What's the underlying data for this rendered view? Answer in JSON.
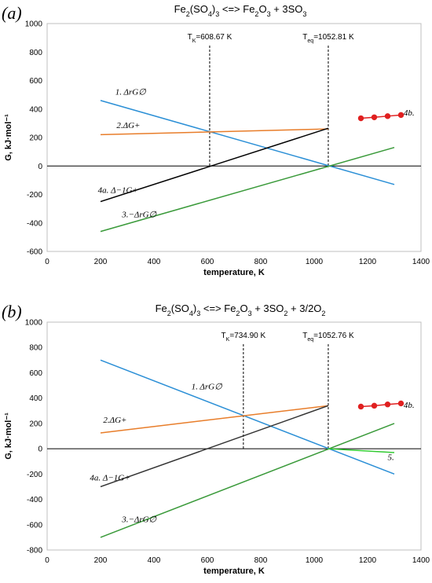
{
  "chart_data": [
    {
      "type": "line",
      "panel_label": "(a)",
      "title": "Fe2(SO4)3 <=> Fe2O3 + 3SO3",
      "title_parts": [
        "Fe",
        "2",
        "(SO",
        "4",
        ")",
        "3",
        " <=> Fe",
        "2",
        "O",
        "3",
        " + 3SO",
        "3"
      ],
      "xlabel": "temperature,  K",
      "ylabel": "G, kJ·mol⁻¹",
      "xlim": [
        0,
        1400
      ],
      "ylim": [
        -600,
        1000
      ],
      "xticks": [
        "0",
        "200",
        "400",
        "600",
        "800",
        "1000",
        "1200",
        "1400"
      ],
      "yticks": [
        "1000",
        "800",
        "600",
        "400",
        "200",
        "0",
        "-200",
        "-400",
        "-600"
      ],
      "vlines": [
        {
          "x": 608.67,
          "label": "T",
          "sub": "K",
          "value": "=608.67 K"
        },
        {
          "x": 1052.81,
          "label": "T",
          "sub": "eq",
          "value": "=1052.81 K"
        }
      ],
      "series": [
        {
          "name": "1. ΔrG∅",
          "color": "#2b8fd6",
          "x": [
            200,
            1300
          ],
          "y": [
            460,
            -130
          ],
          "label_x": 255,
          "label_y": 500
        },
        {
          "name": "2.ΔG+",
          "color": "#e87d2a",
          "x": [
            200,
            1052.81
          ],
          "y": [
            220,
            260
          ],
          "label_x": 260,
          "label_y": 265
        },
        {
          "name": "4a. Δ−1G+",
          "color": "#000000",
          "x": [
            200,
            1052.81
          ],
          "y": [
            -250,
            265
          ],
          "label_x": 190,
          "label_y": -190
        },
        {
          "name": "3.−ΔrG∅",
          "color": "#3a9a3a",
          "x": [
            200,
            1300
          ],
          "y": [
            -460,
            130
          ],
          "label_x": 280,
          "label_y": -360
        },
        {
          "name": "4b.",
          "color": "#e02020",
          "marker": true,
          "x": [
            1175,
            1225,
            1275,
            1325
          ],
          "y": [
            335,
            342,
            350,
            358
          ],
          "label_x": 1335,
          "label_y": 355
        }
      ]
    },
    {
      "type": "line",
      "panel_label": "(b)",
      "title": "Fe2(SO4)3 <=> Fe2O3 + 3SO2 + 3/2O2",
      "title_parts": [
        "Fe",
        "2",
        "(SO",
        "4",
        ")",
        "3",
        " <=> Fe",
        "2",
        "O",
        "3",
        " + 3SO",
        "2",
        " + 3/2O",
        "2"
      ],
      "xlabel": "temperature,  K",
      "ylabel": "G, kJ·mol⁻¹",
      "xlim": [
        0,
        1400
      ],
      "ylim": [
        -800,
        1000
      ],
      "xticks": [
        "0",
        "200",
        "400",
        "600",
        "800",
        "1000",
        "1200",
        "1400"
      ],
      "yticks": [
        "1000",
        "800",
        "600",
        "400",
        "200",
        "0",
        "-200",
        "-400",
        "-600",
        "-800"
      ],
      "vlines": [
        {
          "x": 734.9,
          "label": "T",
          "sub": "K",
          "value": "=734.90 K"
        },
        {
          "x": 1052.76,
          "label": "T",
          "sub": "eq",
          "value": "=1052.76 K"
        }
      ],
      "series": [
        {
          "name": "1. ΔrG∅",
          "color": "#2b8fd6",
          "x": [
            200,
            1300
          ],
          "y": [
            700,
            -200
          ],
          "label_x": 540,
          "label_y": 470
        },
        {
          "name": "2.ΔG+",
          "color": "#e87d2a",
          "x": [
            200,
            1052.76
          ],
          "y": [
            125,
            340
          ],
          "label_x": 210,
          "label_y": 205
        },
        {
          "name": "4a. Δ−1G+",
          "color": "#333333",
          "x": [
            200,
            1052.76
          ],
          "y": [
            -300,
            340
          ],
          "label_x": 160,
          "label_y": -250
        },
        {
          "name": "3.−ΔrG∅",
          "color": "#3a9a3a",
          "x": [
            200,
            1300
          ],
          "y": [
            -700,
            200
          ],
          "label_x": 280,
          "label_y": -580
        },
        {
          "name": "5.",
          "color": "#33cc33",
          "x": [
            1052.76,
            1300
          ],
          "y": [
            0,
            -30
          ],
          "label_x": 1275,
          "label_y": -90
        },
        {
          "name": "4b.",
          "color": "#e02020",
          "marker": true,
          "x": [
            1175,
            1225,
            1275,
            1325
          ],
          "y": [
            333,
            340,
            350,
            358
          ],
          "label_x": 1335,
          "label_y": 325
        }
      ]
    }
  ]
}
